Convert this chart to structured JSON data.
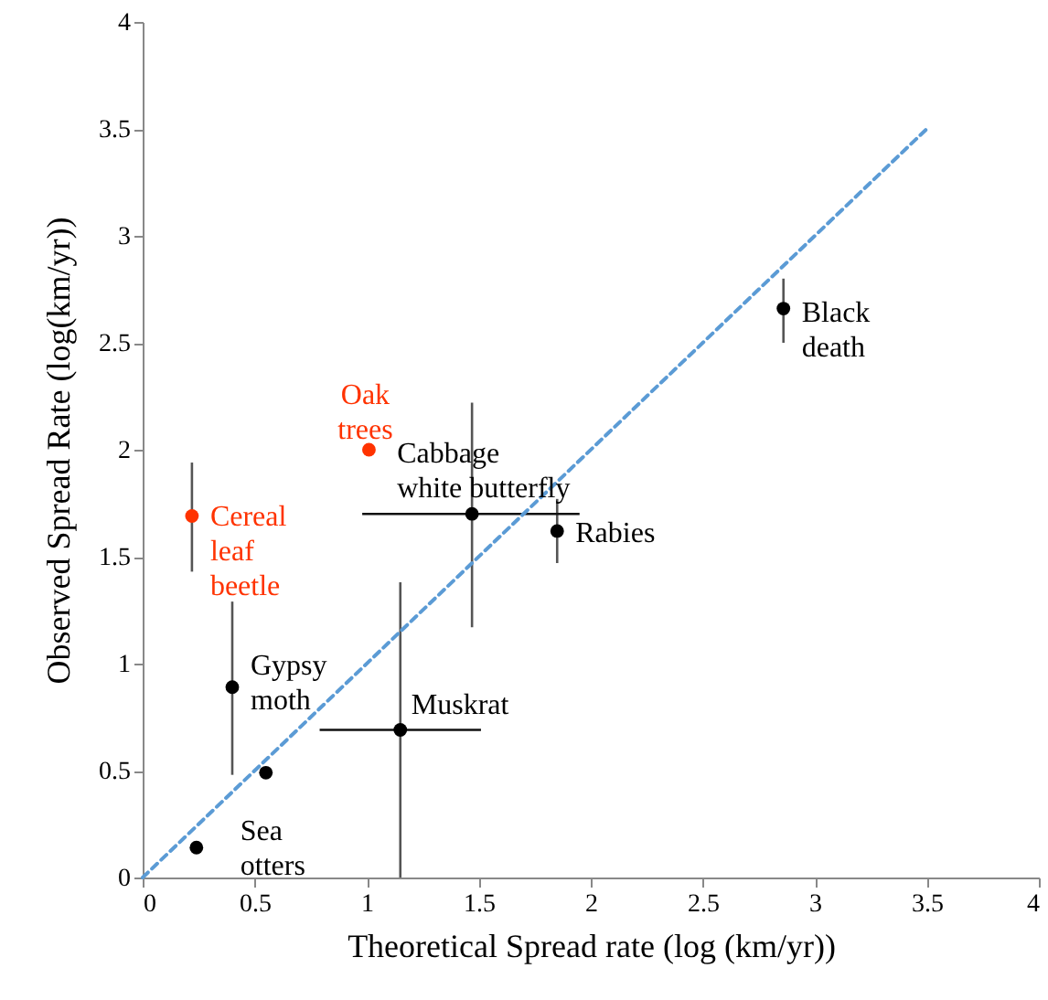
{
  "chart_data": {
    "type": "scatter",
    "xlabel": "Theoretical Spread rate (log (km/yr))",
    "ylabel": "Observed Spread Rate (log(km/yr))",
    "xlim": [
      0,
      4
    ],
    "ylim": [
      0,
      4
    ],
    "xticks": [
      0,
      0.5,
      1,
      1.5,
      2,
      2.5,
      3,
      3.5,
      4
    ],
    "yticks": [
      0,
      0.5,
      1,
      1.5,
      2,
      2.5,
      3,
      3.5,
      4
    ],
    "grid": false,
    "series": [
      {
        "marker": "circle",
        "x": [
          0.24,
          0.55,
          0.4,
          0.22,
          1.01,
          1.15,
          1.47,
          1.85,
          2.86
        ],
        "values": [
          0.14,
          0.49,
          0.89,
          1.69,
          2.0,
          0.69,
          1.7,
          1.62,
          2.66
        ],
        "colors": [
          "#000000",
          "#000000",
          "#000000",
          "#ff3300",
          "#ff3300",
          "#000000",
          "#000000",
          "#000000",
          "#000000"
        ],
        "errors": [
          null,
          null,
          [
            0.48,
            1.29
          ],
          [
            1.43,
            1.94
          ],
          null,
          [
            0,
            1.38
          ],
          [
            1.17,
            2.22
          ],
          [
            1.47,
            1.77
          ],
          [
            2.5,
            2.8
          ]
        ],
        "xerrors": [
          null,
          null,
          null,
          null,
          null,
          [
            0.79,
            1.51
          ],
          [
            0.98,
            1.95
          ],
          null,
          null
        ]
      },
      {
        "type": "line",
        "x": [
          0,
          3.5
        ],
        "values": [
          0,
          3.5
        ],
        "color": "#5b9bd5",
        "line_style": "dashed"
      }
    ],
    "annotations": [
      {
        "text": "Cereal\nleaf\nbeetle",
        "x": 0.22,
        "y": 1.69
      },
      {
        "text": "Oak\ntrees",
        "x": 1.01,
        "y": 2.0
      },
      {
        "text": "Cabbage\nwhite butterfly",
        "x": 1.47,
        "y": 1.7
      },
      {
        "text": "Rabies",
        "x": 1.85,
        "y": 1.62
      },
      {
        "text": "Black\ndeath",
        "x": 2.86,
        "y": 2.66
      },
      {
        "text": "Gypsy\nmoth",
        "x": 0.4,
        "y": 0.89
      },
      {
        "text": "Muskrat",
        "x": 1.15,
        "y": 0.69
      },
      {
        "text": "Sea\notters",
        "x": 0.24,
        "y": 0.14
      }
    ]
  }
}
